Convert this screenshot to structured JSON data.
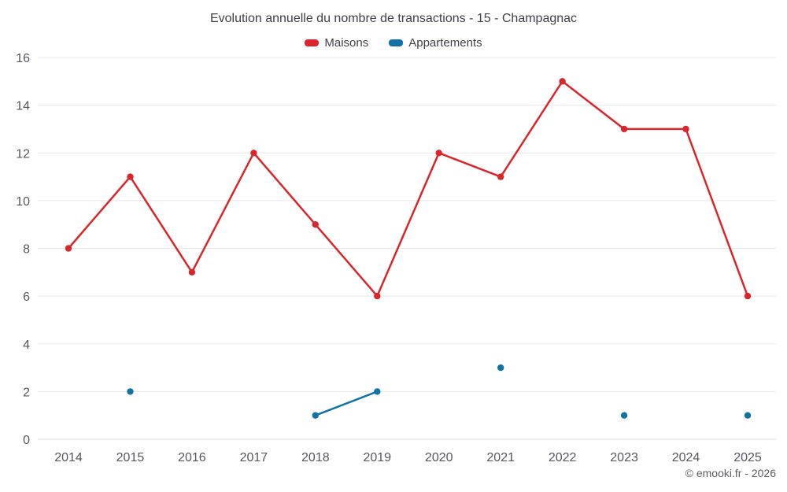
{
  "chart_data": {
    "type": "line",
    "title": "Evolution annuelle du nombre de transactions - 15 - Champagnac",
    "categories": [
      "2014",
      "2015",
      "2016",
      "2017",
      "2018",
      "2019",
      "2020",
      "2021",
      "2022",
      "2023",
      "2024",
      "2025"
    ],
    "series": [
      {
        "name": "Maisons",
        "color": "#d8262c",
        "values": [
          8,
          11,
          7,
          12,
          9,
          6,
          12,
          11,
          15,
          13,
          13,
          6
        ]
      },
      {
        "name": "Appartements",
        "color": "#1272a5",
        "values": [
          null,
          2,
          null,
          null,
          1,
          2,
          null,
          3,
          null,
          1,
          null,
          1
        ]
      }
    ],
    "xlabel": "",
    "ylabel": "",
    "ylim": [
      0,
      16
    ],
    "yticks": [
      0,
      2,
      4,
      6,
      8,
      10,
      12,
      14,
      16
    ],
    "grid": "horizontal-only",
    "legend_position": "top-center"
  },
  "footer": {
    "credit": "© emooki.fr - 2026"
  }
}
